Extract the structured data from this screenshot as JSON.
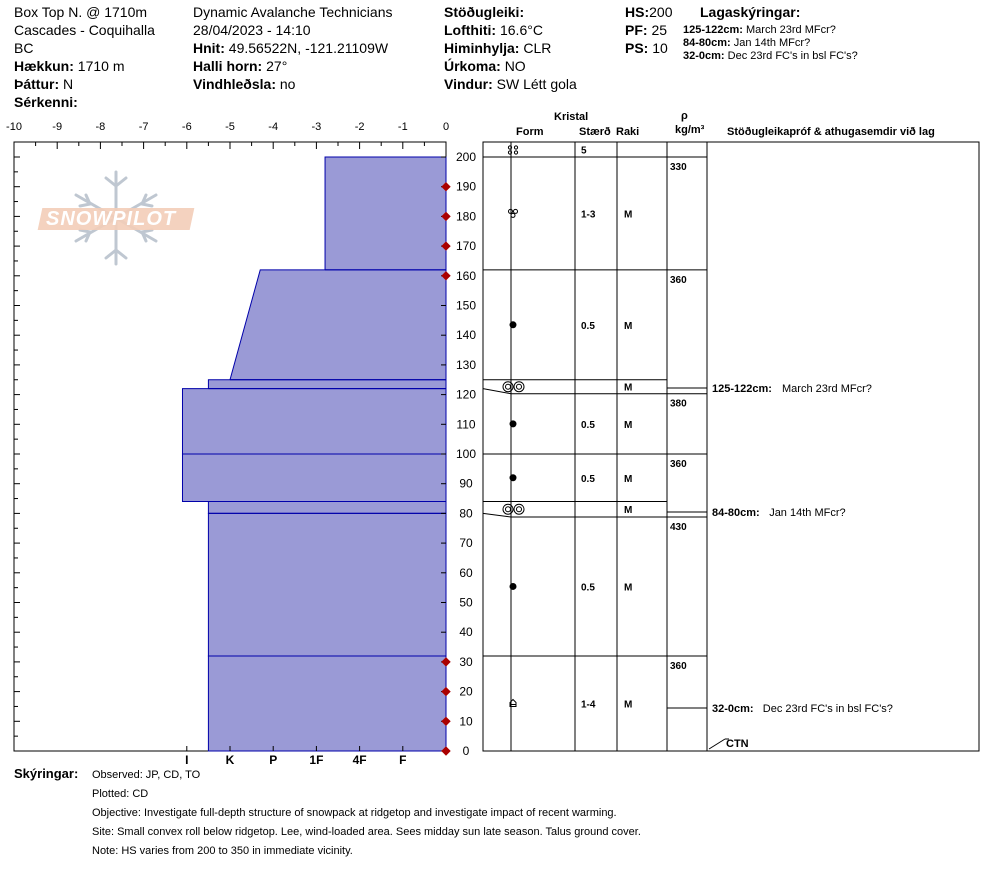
{
  "header": {
    "site_name": "Box Top N. @ 1710m",
    "range": "Cascades - Coquihalla",
    "state": "BC",
    "elevation_label": "Hækkun:",
    "elevation_value": "1710 m",
    "aspect_label": "Þáttur:",
    "aspect_value": "N",
    "specifics_label": "Sérkenni:",
    "organization": "Dynamic Avalanche Technicians",
    "datetime": "28/04/2023 - 14:10",
    "coords_label": "Hnit:",
    "coords_value": "49.56522N, -121.21109W",
    "slope_label": "Halli horn:",
    "slope_value": "27°",
    "wind_loading_label": "Vindhleðsla:",
    "wind_loading_value": "no",
    "stability_label": "Stöðugleiki:",
    "air_temp_label": "Lofthiti:",
    "air_temp_value": "16.6°C",
    "sky_label": "Himinhylja:",
    "sky_value": "CLR",
    "precip_label": "Úrkoma:",
    "precip_value": "NO",
    "wind_label": "Vindur:",
    "wind_value": "SW Létt gola",
    "hs_label": "HS:",
    "hs_value": "200",
    "pf_label": "PF:",
    "pf_value": "25",
    "ps_label": "PS:",
    "ps_value": "10",
    "layer_notes_label": "Lagaskýringar:",
    "layer_notes": [
      {
        "range": "125-122cm:",
        "text": "March 23rd MFcr?"
      },
      {
        "range": "84-80cm:",
        "text": "Jan 14th MFcr?"
      },
      {
        "range": "32-0cm:",
        "text": "Dec 23rd FC's in bsl FC's?"
      }
    ]
  },
  "logo_text": "SNOWPILOT",
  "columns": {
    "crystal": "Kristal",
    "form": "Form",
    "size": "Stærð",
    "moisture": "Raki",
    "rho": "ρ",
    "density_unit": "kg/m³",
    "tests_comments": "Stöðugleikapróf & athugasemdir við lag"
  },
  "ctn_label": "CTN",
  "footer": {
    "comments_label": "Skýringar:",
    "observed": "Observed: JP, CD, TO",
    "plotted": "Plotted: CD",
    "objective": "Objective: Investigate full-depth structure of snowpack at ridgetop and investigate impact of recent warming.",
    "site": "Site: Small convex roll below ridgetop. Lee, wind-loaded area. Sees midday sun late season. Talus ground cover.",
    "note": "Note: HS varies from 200 to 350 in immediate vicinity."
  },
  "colors": {
    "hardness_fill": "#9a9ad6",
    "layer_line": "#0000aa",
    "temp_marker": "#aa0000"
  },
  "chart_data": {
    "type": "area",
    "title": "",
    "temperature_axis": {
      "ticks": [
        "-10",
        "-9",
        "-8",
        "-7",
        "-6",
        "-5",
        "-4",
        "-3",
        "-2",
        "-1",
        "0"
      ],
      "range": [
        -10,
        0
      ]
    },
    "height_axis": {
      "ticks": [
        "0",
        "10",
        "20",
        "30",
        "40",
        "50",
        "60",
        "70",
        "80",
        "90",
        "100",
        "110",
        "120",
        "130",
        "140",
        "150",
        "160",
        "170",
        "180",
        "190",
        "200"
      ],
      "range": [
        0,
        200
      ]
    },
    "hardness_axis": {
      "labels": [
        "I",
        "K",
        "P",
        "1F",
        "4F",
        "F"
      ],
      "hardness_index": [
        6,
        5,
        4,
        3,
        2,
        1
      ]
    },
    "temperature_profile_heights_cm": [
      0,
      10,
      20,
      30,
      160,
      170,
      180,
      190
    ],
    "temperature_profile_values_c": [
      0,
      0,
      0,
      0,
      0,
      0,
      0,
      0
    ],
    "layers": [
      {
        "top": 200,
        "bottom": 162,
        "hardness_top": 2.8,
        "hardness_bottom": 2.8,
        "form": "precip-particles",
        "size": "1-3",
        "moisture": "M",
        "density": "330"
      },
      {
        "top": 162,
        "bottom": 125,
        "hardness_top": 4.3,
        "hardness_bottom": 5.0,
        "form": "rounded-grains",
        "size": "0.5",
        "moisture": "M",
        "density": "360"
      },
      {
        "top": 125,
        "bottom": 122,
        "hardness_top": 5.5,
        "hardness_bottom": 5.5,
        "form": "melt-freeze-crust",
        "size": "",
        "moisture": "M",
        "density": ""
      },
      {
        "top": 122,
        "bottom": 100,
        "hardness_top": 6.1,
        "hardness_bottom": 6.1,
        "form": "rounded-grains",
        "size": "0.5",
        "moisture": "M",
        "density": "380"
      },
      {
        "top": 100,
        "bottom": 84,
        "hardness_top": 6.1,
        "hardness_bottom": 6.1,
        "form": "rounded-grains",
        "size": "0.5",
        "moisture": "M",
        "density": "360"
      },
      {
        "top": 84,
        "bottom": 80,
        "hardness_top": 5.5,
        "hardness_bottom": 5.5,
        "form": "melt-freeze-crust",
        "size": "",
        "moisture": "M",
        "density": ""
      },
      {
        "top": 80,
        "bottom": 32,
        "hardness_top": 5.5,
        "hardness_bottom": 5.5,
        "form": "rounded-grains",
        "size": "0.5",
        "moisture": "M",
        "density": "430"
      },
      {
        "top": 32,
        "bottom": 0,
        "hardness_top": 5.5,
        "hardness_bottom": 5.5,
        "form": "faceted-crystals",
        "size": "1-4",
        "moisture": "M",
        "density": "360"
      }
    ],
    "top_crystal": {
      "form": "precip-particles",
      "size": "5"
    }
  }
}
